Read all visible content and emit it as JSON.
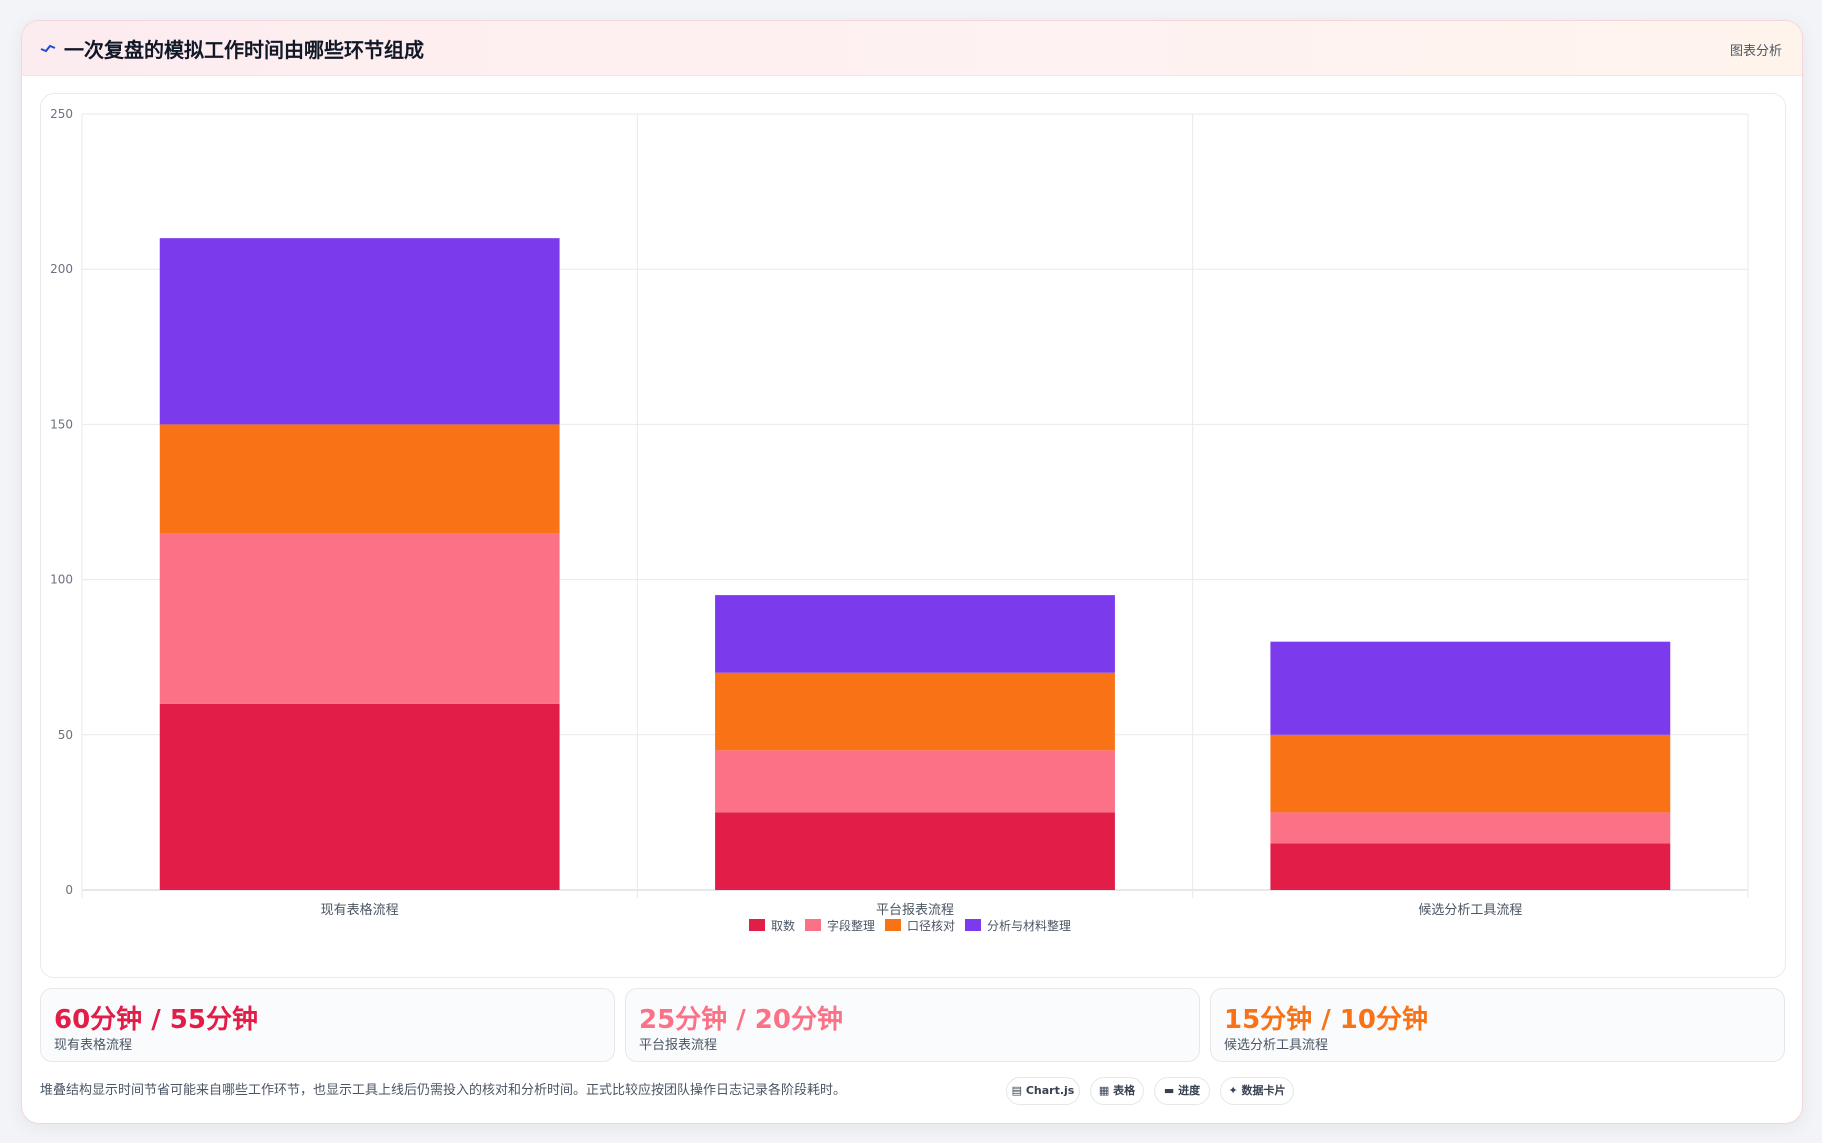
{
  "header": {
    "title": "一次复盘的模拟工作时间由哪些环节组成",
    "right_label": "图表分析"
  },
  "colors": {
    "series": [
      "#e11d48",
      "#fb7185",
      "#f97316",
      "#7c3aed"
    ]
  },
  "chart_data": {
    "type": "bar",
    "stacked": true,
    "categories": [
      "现有表格流程",
      "平台报表流程",
      "候选分析工具流程"
    ],
    "series": [
      {
        "name": "取数",
        "values": [
          60,
          25,
          15
        ]
      },
      {
        "name": "字段整理",
        "values": [
          55,
          20,
          10
        ]
      },
      {
        "name": "口径核对",
        "values": [
          35,
          25,
          25
        ]
      },
      {
        "name": "分析与材料整理",
        "values": [
          60,
          25,
          30
        ]
      }
    ],
    "ylim": [
      0,
      250
    ],
    "yticks": [
      "0",
      "50",
      "100",
      "150",
      "200",
      "250"
    ],
    "grid": true,
    "legend_position": "bottom"
  },
  "stats": [
    {
      "value": "60分钟 / 55分钟",
      "label": "现有表格流程",
      "color": "#e11d48"
    },
    {
      "value": "25分钟 / 20分钟",
      "label": "平台报表流程",
      "color": "#fb7185"
    },
    {
      "value": "15分钟 / 10分钟",
      "label": "候选分析工具流程",
      "color": "#f97316"
    }
  ],
  "footnote": "堆叠结构显示时间节省可能来自哪些工作环节，也显示工具上线后仍需投入的核对和分析时间。正式比较应按团队操作日志记录各阶段耗时。",
  "tags": [
    {
      "icon": "chart-icon",
      "label": "▤ Chart.js"
    },
    {
      "icon": "table-icon",
      "label": "▦ 表格"
    },
    {
      "icon": "progress-icon",
      "label": "▬ 进度"
    },
    {
      "icon": "card-icon",
      "label": "✦ 数据卡片"
    }
  ]
}
